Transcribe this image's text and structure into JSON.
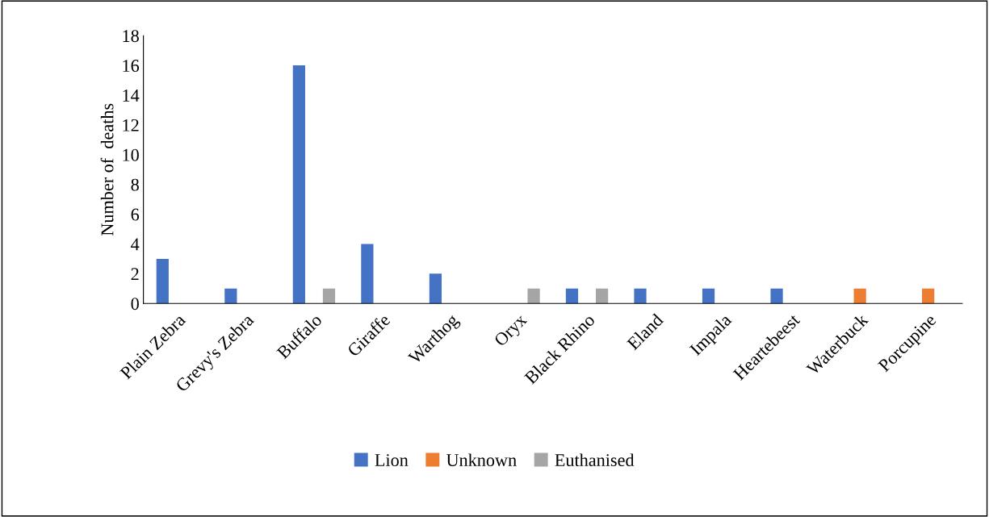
{
  "chart_data": {
    "type": "bar",
    "ylabel": "Number of  deaths",
    "categories": [
      "Plain Zebra",
      "Grevy's Zebra",
      "Buffalo",
      "Giraffe",
      "Warthog",
      "Oryx",
      "Black Rhino",
      "Eland",
      "Impala",
      "Heartebeest",
      "Waterbuck",
      "Porcupine"
    ],
    "series": [
      {
        "name": "Lion",
        "color": "#4472c4",
        "values": [
          3,
          1,
          16,
          4,
          2,
          null,
          1,
          1,
          1,
          1,
          null,
          null
        ]
      },
      {
        "name": "Unknown",
        "color": "#ed7d31",
        "values": [
          null,
          null,
          null,
          null,
          null,
          null,
          null,
          null,
          null,
          null,
          1,
          1
        ]
      },
      {
        "name": "Euthanised",
        "color": "#a5a5a5",
        "values": [
          null,
          null,
          1,
          null,
          null,
          1,
          1,
          null,
          null,
          null,
          null,
          null
        ]
      }
    ],
    "ylim": [
      0,
      18
    ],
    "yticks": [
      0,
      2,
      4,
      6,
      8,
      10,
      12,
      14,
      16,
      18
    ],
    "grid": false,
    "legend": "bottom"
  }
}
